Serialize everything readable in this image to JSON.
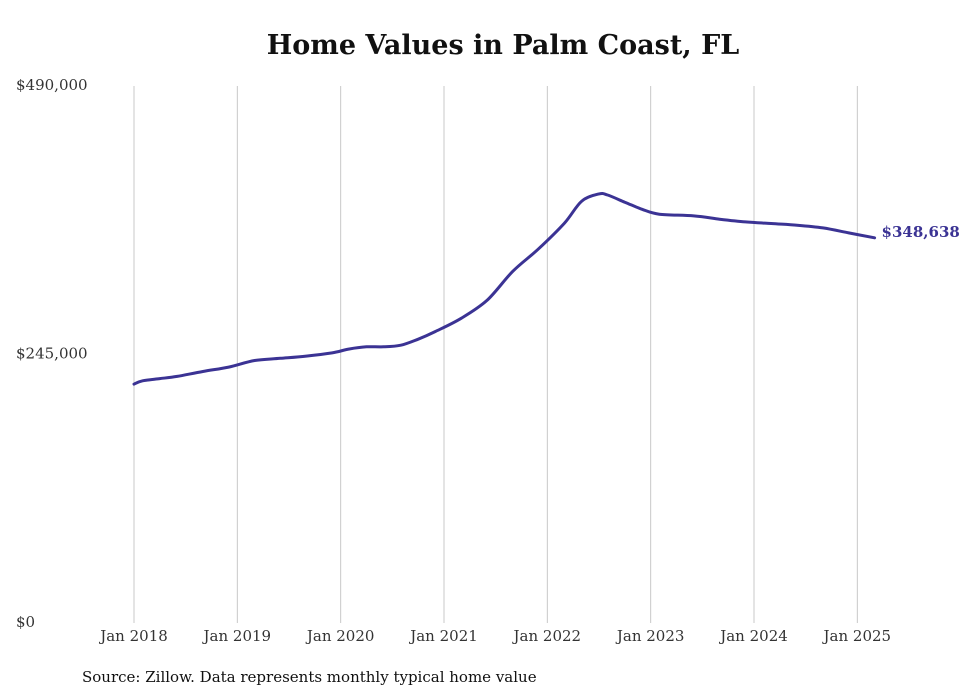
{
  "chart_data": {
    "type": "line",
    "title": "Home Values in Palm Coast, FL",
    "xlabel": "",
    "ylabel": "",
    "ylim": [
      0,
      490000
    ],
    "yticks": [
      0,
      245000,
      490000
    ],
    "ytick_labels": [
      "$0",
      "$245,000",
      "$490,000"
    ],
    "xlim": [
      "2018-01",
      "2025-03"
    ],
    "xtick_dates": [
      "2018-01",
      "2019-01",
      "2020-01",
      "2021-01",
      "2022-01",
      "2023-01",
      "2024-01",
      "2025-01"
    ],
    "xtick_labels": [
      "Jan 2018",
      "Jan 2019",
      "Jan 2020",
      "Jan 2021",
      "Jan 2022",
      "Jan 2023",
      "Jan 2024",
      "Jan 2025"
    ],
    "grid": "vertical",
    "legend": "none",
    "colors": {
      "line": "#3b3394",
      "grid": "#c8c8c8",
      "end_label": "#3b3394"
    },
    "series": [
      {
        "x": [
          "2018-01",
          "2018-02",
          "2018-04",
          "2018-06",
          "2018-09",
          "2018-12",
          "2019-03",
          "2019-06",
          "2019-09",
          "2019-12",
          "2020-02",
          "2020-04",
          "2020-06",
          "2020-08",
          "2020-10",
          "2020-12",
          "2021-03",
          "2021-06",
          "2021-09",
          "2021-12",
          "2022-03",
          "2022-05",
          "2022-07",
          "2022-08",
          "2022-10",
          "2022-12",
          "2023-02",
          "2023-06",
          "2023-09",
          "2023-12",
          "2024-03",
          "2024-06",
          "2024-09",
          "2024-12",
          "2025-03"
        ],
        "values": [
          218000,
          221000,
          223000,
          225000,
          229500,
          233500,
          239500,
          241500,
          243500,
          246500,
          250000,
          252000,
          252000,
          253500,
          259000,
          266000,
          278000,
          294500,
          321000,
          341500,
          365000,
          385000,
          391500,
          390500,
          384000,
          377500,
          373000,
          371500,
          368500,
          366000,
          364500,
          363000,
          360500,
          356000,
          351500
        ]
      }
    ],
    "end_label": "$348,638"
  },
  "source": "Source: Zillow. Data represents monthly typical home value"
}
